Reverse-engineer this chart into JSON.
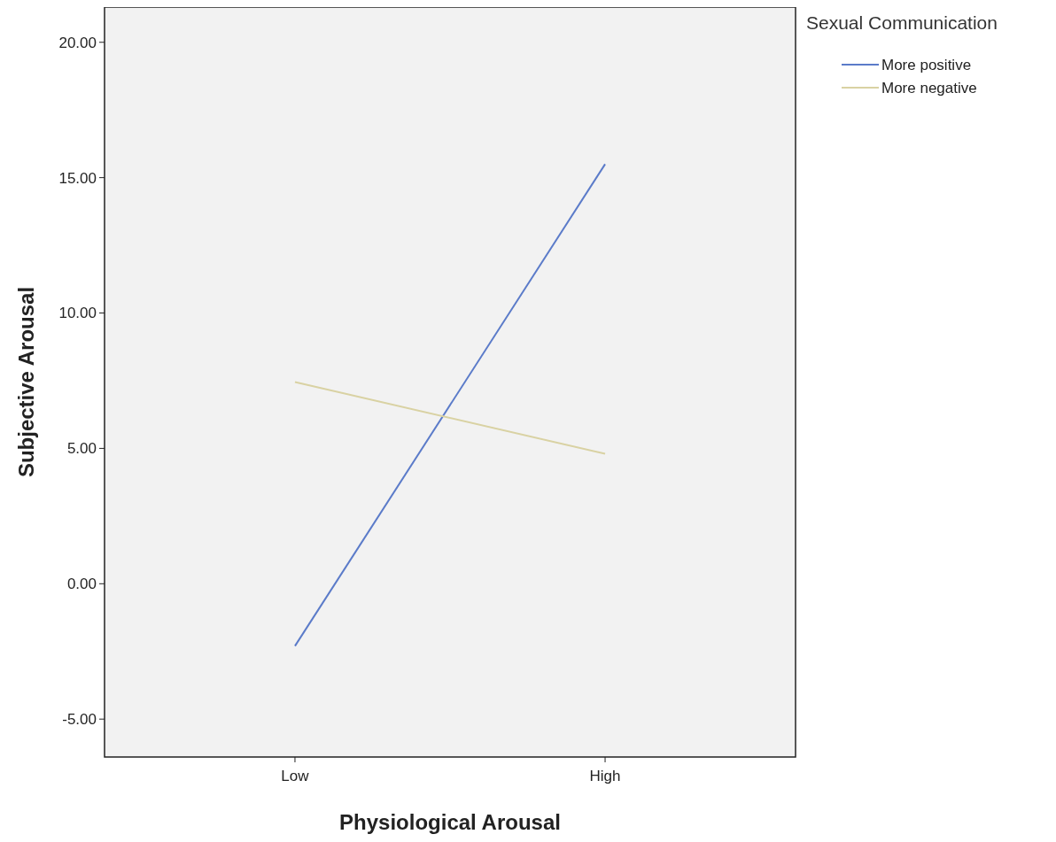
{
  "chart_data": {
    "type": "line",
    "xlabel": "Physiological Arousal",
    "ylabel": "Subjective Arousal",
    "legend_title": "Sexual Communication",
    "categories": [
      "Low",
      "High"
    ],
    "series": [
      {
        "name": "More positive",
        "color": "#5b7bc9",
        "values": [
          -2.3,
          15.5
        ]
      },
      {
        "name": "More negative",
        "color": "#d9d2a3",
        "values": [
          7.45,
          4.8
        ]
      }
    ],
    "ylim": [
      -6.4,
      21.3
    ],
    "yticks": [
      {
        "value": -5,
        "label": "-5.00"
      },
      {
        "value": 0,
        "label": "0.00"
      },
      {
        "value": 5,
        "label": "5.00"
      },
      {
        "value": 10,
        "label": "10.00"
      },
      {
        "value": 15,
        "label": "15.00"
      },
      {
        "value": 20,
        "label": "20.00"
      }
    ],
    "legend": "top right",
    "grid": false,
    "marker": "none",
    "line_style": "solid"
  }
}
